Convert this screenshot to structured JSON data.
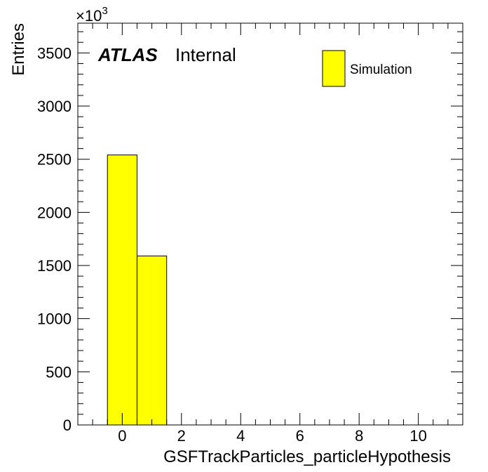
{
  "chart_data": {
    "type": "bar",
    "style": "histogram",
    "xlabel": "GSFTrackParticles_particleHypothesis",
    "ylabel": "Entries",
    "y_multiplier": "×10",
    "y_multiplier_exp": "3",
    "xlim": [
      -1.5,
      11.5
    ],
    "ylim": [
      0,
      3780
    ],
    "x_ticks": [
      0,
      2,
      4,
      6,
      8,
      10
    ],
    "x_tick_labels": [
      "0",
      "2",
      "4",
      "6",
      "8",
      "10"
    ],
    "y_ticks": [
      0,
      500,
      1000,
      1500,
      2000,
      2500,
      3000,
      3500
    ],
    "y_tick_labels": [
      "0",
      "500",
      "1000",
      "1500",
      "2000",
      "2500",
      "3000",
      "3500"
    ],
    "bins": [
      {
        "low": -0.5,
        "high": 0.5,
        "value": 2540
      },
      {
        "low": 0.5,
        "high": 1.5,
        "value": 1590
      }
    ],
    "fill_color": "#ffff00",
    "line_color": "#000000",
    "experiment_label": "ATLAS",
    "status_label": "Internal",
    "legend": [
      {
        "name": "Simulation",
        "color": "#ffff00"
      }
    ],
    "legend_position": "top-right"
  }
}
